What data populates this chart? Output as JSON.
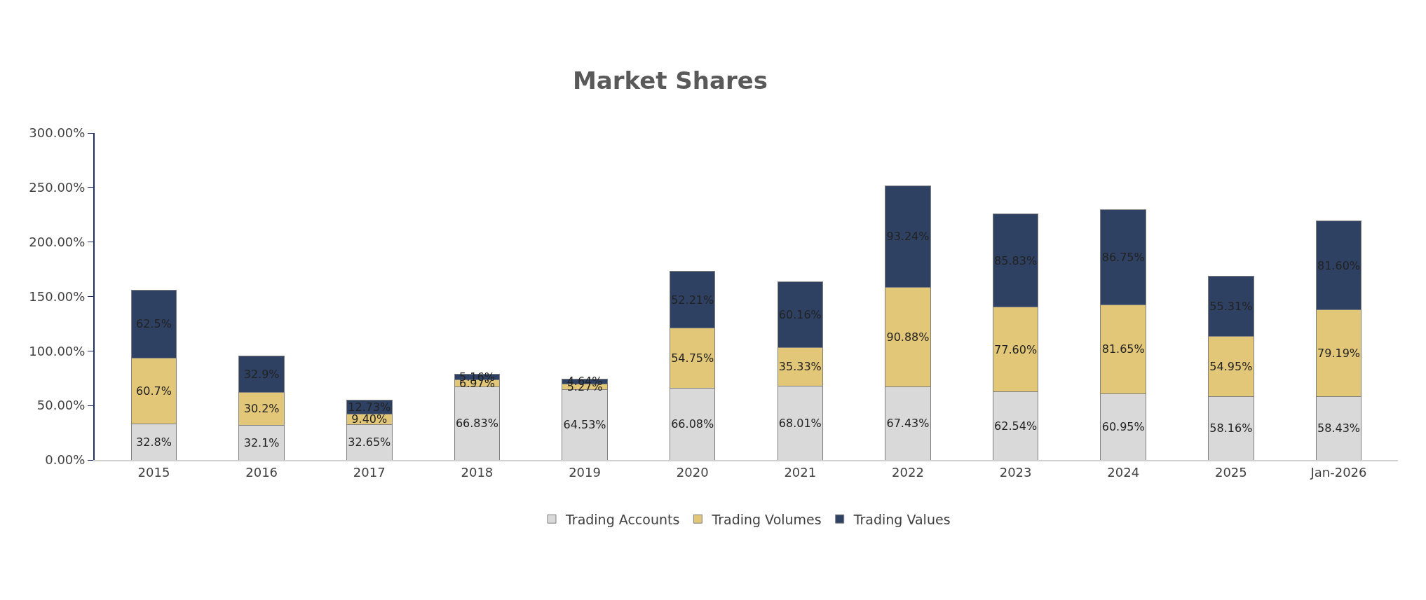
{
  "chart_data": {
    "type": "bar",
    "title": "Market Shares",
    "stacked": true,
    "categories": [
      "2015",
      "2016",
      "2017",
      "2018",
      "2019",
      "2020",
      "2021",
      "2022",
      "2023",
      "2024",
      "2025",
      "Jan-2026"
    ],
    "series": [
      {
        "name": "Trading Accounts",
        "color": "#d9d9d9",
        "values": [
          32.8,
          32.1,
          32.65,
          66.83,
          64.53,
          66.08,
          68.01,
          67.43,
          62.54,
          60.95,
          58.16,
          58.43
        ],
        "value_labels": [
          "32.8%",
          "32.1%",
          "32.65%",
          "66.83%",
          "64.53%",
          "66.08%",
          "68.01%",
          "67.43%",
          "62.54%",
          "60.95%",
          "58.16%",
          "58.43%"
        ]
      },
      {
        "name": "Trading Volumes",
        "color": "#e2c778",
        "values": [
          60.7,
          30.2,
          9.4,
          6.97,
          5.27,
          54.75,
          35.33,
          90.88,
          77.6,
          81.65,
          54.95,
          79.19
        ],
        "value_labels": [
          "60.7%",
          "30.2%",
          "9.40%",
          "6.97%",
          "5.27%",
          "54.75%",
          "35.33%",
          "90.88%",
          "77.60%",
          "81.65%",
          "54.95%",
          "79.19%"
        ]
      },
      {
        "name": "Trading Values",
        "color": "#2e4163",
        "values": [
          62.5,
          32.9,
          12.73,
          5.16,
          4.64,
          52.21,
          60.16,
          93.24,
          85.83,
          86.75,
          55.31,
          81.6
        ],
        "value_labels": [
          "62.5%",
          "32.9%",
          "12.73%",
          "5.16%",
          "4.64%",
          "52.21%",
          "60.16%",
          "93.24%",
          "85.83%",
          "86.75%",
          "55.31%",
          "81.60%"
        ]
      }
    ],
    "ylim": [
      0,
      300
    ],
    "yticks": [
      {
        "value": 0,
        "label": "0.00%"
      },
      {
        "value": 50,
        "label": "50.00%"
      },
      {
        "value": 100,
        "label": "100.00%"
      },
      {
        "value": 150,
        "label": "150.00%"
      },
      {
        "value": 200,
        "label": "200.00%"
      },
      {
        "value": 250,
        "label": "250.00%"
      },
      {
        "value": 300,
        "label": "300.00%"
      }
    ],
    "legend": "bottom"
  }
}
